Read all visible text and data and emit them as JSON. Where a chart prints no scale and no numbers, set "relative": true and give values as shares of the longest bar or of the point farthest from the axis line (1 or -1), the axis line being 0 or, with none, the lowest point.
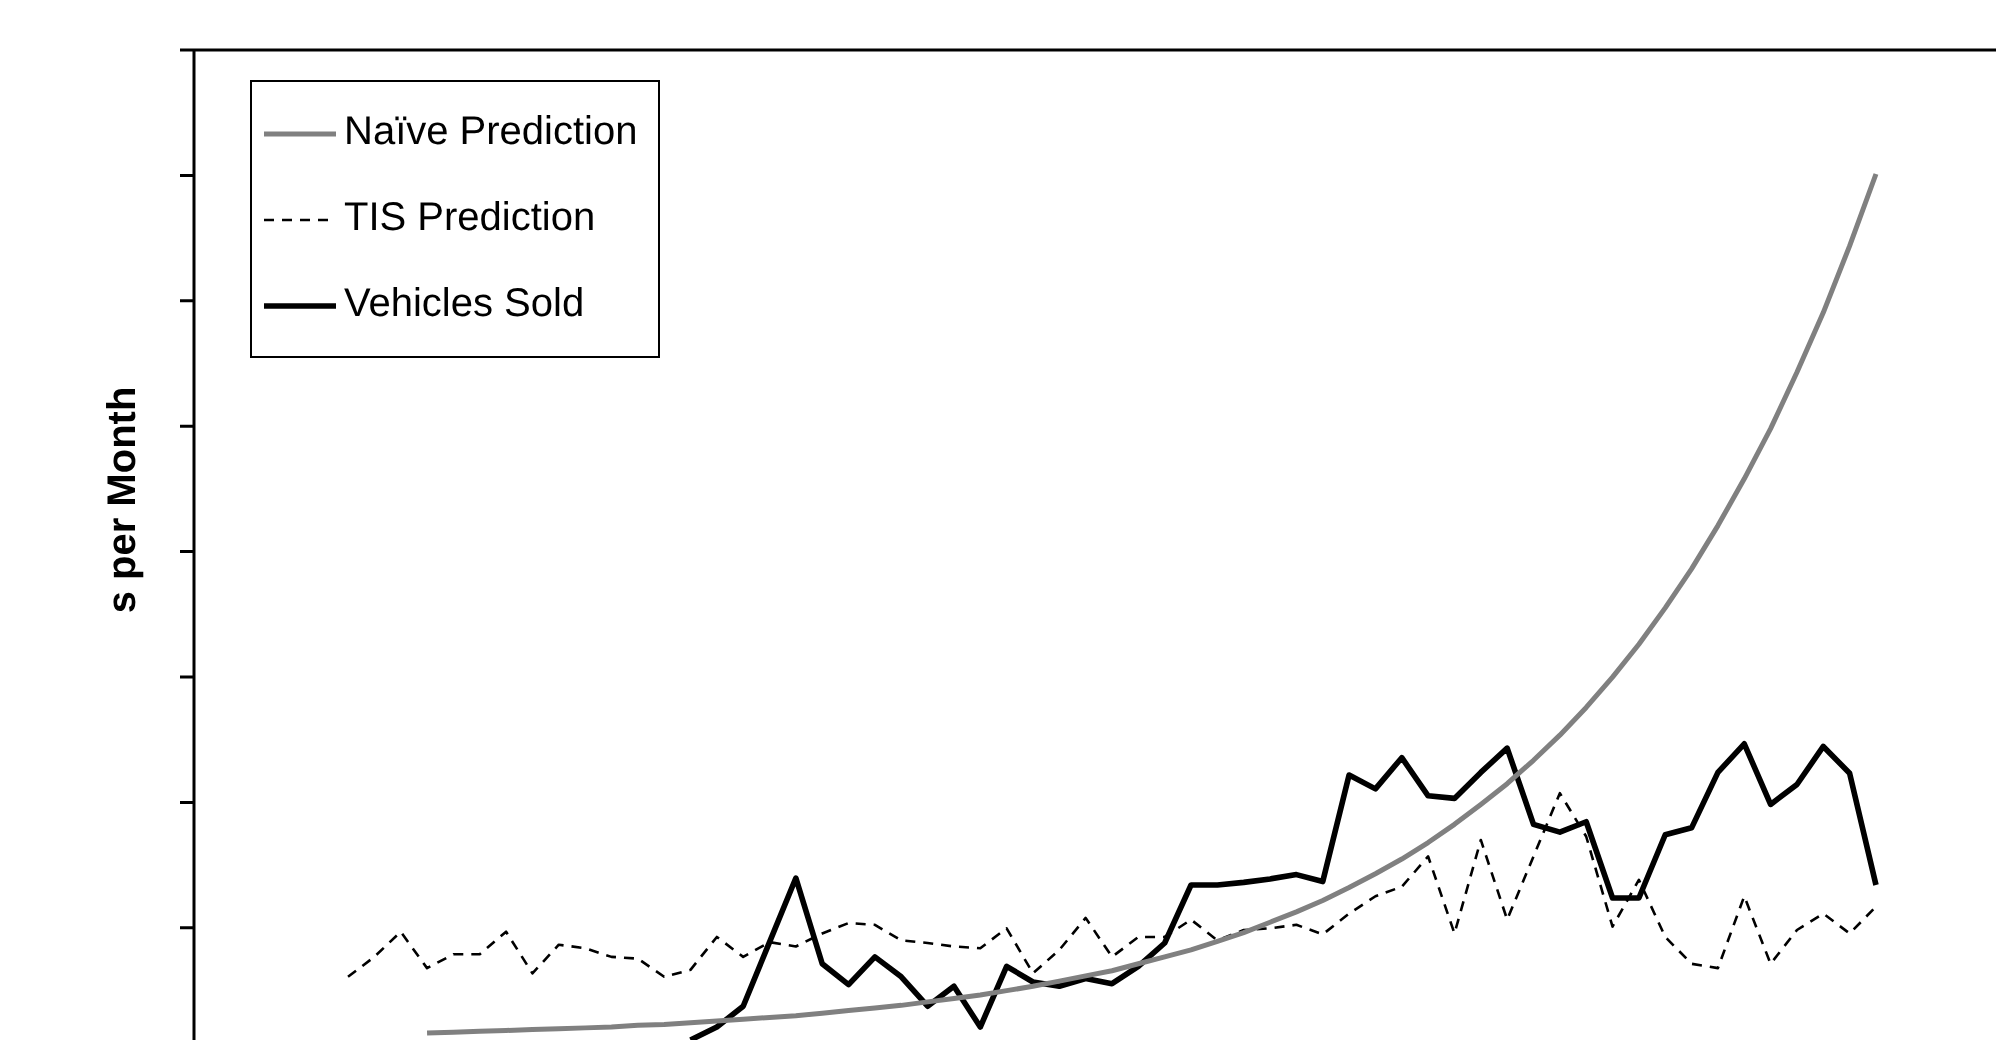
{
  "chart_data": {
    "type": "line",
    "relative": true,
    "ylabel": "s per Month",
    "legend": "top left",
    "categories": [
      null,
      null,
      null,
      null,
      null,
      null,
      null,
      null,
      null,
      null,
      null,
      null,
      null,
      null,
      null,
      null,
      null,
      null,
      null,
      null,
      null,
      null,
      null,
      null,
      null,
      null,
      null,
      null,
      null,
      null,
      null,
      null,
      null,
      null,
      null,
      null,
      null,
      null,
      null,
      null,
      null,
      null,
      null,
      null,
      null,
      null,
      null,
      null,
      null,
      null,
      null,
      null,
      null,
      null,
      null,
      null,
      null,
      null,
      null
    ],
    "series": [
      {
        "name": "Naïve Prediction",
        "color": "#808080",
        "values": [
          null,
          null,
          null,
          0.008,
          0.009,
          0.01,
          0.011,
          0.012,
          0.013,
          0.014,
          0.015,
          0.017,
          0.018,
          0.02,
          0.022,
          0.024,
          0.026,
          0.028,
          0.031,
          0.034,
          0.037,
          0.04,
          0.044,
          0.048,
          0.052,
          0.057,
          0.062,
          0.068,
          0.074,
          0.08,
          0.088,
          0.096,
          0.104,
          0.114,
          0.124,
          0.136,
          0.148,
          0.161,
          0.176,
          0.192,
          0.209,
          0.228,
          0.249,
          0.272,
          0.296,
          0.323,
          0.352,
          0.384,
          0.419,
          0.457,
          0.499,
          0.544,
          0.594,
          0.648,
          0.706,
          0.771,
          0.84,
          0.917,
          1.0
        ]
      },
      {
        "name": "TIS Prediction",
        "color": "#000000",
        "line_style": "dashed",
        "values": [
          0.073,
          0.096,
          0.125,
          0.083,
          0.099,
          0.099,
          0.125,
          0.077,
          0.11,
          0.106,
          0.096,
          0.094,
          0.073,
          0.081,
          0.119,
          0.096,
          0.113,
          0.108,
          0.123,
          0.135,
          0.133,
          0.115,
          0.112,
          0.108,
          0.106,
          0.129,
          0.077,
          0.104,
          0.141,
          0.096,
          0.119,
          0.119,
          0.139,
          0.115,
          0.127,
          0.129,
          0.133,
          0.122,
          0.146,
          0.166,
          0.177,
          0.212,
          0.123,
          0.231,
          0.139,
          0.212,
          0.285,
          0.235,
          0.131,
          0.185,
          0.119,
          0.088,
          0.083,
          0.166,
          0.088,
          0.127,
          0.146,
          0.123,
          0.154
        ]
      },
      {
        "name": "Vehicles Sold",
        "color": "#000000",
        "values": [
          null,
          null,
          null,
          null,
          null,
          null,
          null,
          null,
          null,
          null,
          null,
          null,
          null,
          0.0,
          0.015,
          0.039,
          0.113,
          0.187,
          0.088,
          0.064,
          0.096,
          0.073,
          0.039,
          0.062,
          0.015,
          0.085,
          0.067,
          0.062,
          0.071,
          0.065,
          0.085,
          0.112,
          0.179,
          0.179,
          0.182,
          0.186,
          0.191,
          0.183,
          0.306,
          0.29,
          0.326,
          0.282,
          0.279,
          0.309,
          0.337,
          0.249,
          0.24,
          0.252,
          0.164,
          0.164,
          0.237,
          0.245,
          0.309,
          0.342,
          0.272,
          0.295,
          0.339,
          0.308,
          0.179
        ]
      }
    ]
  }
}
